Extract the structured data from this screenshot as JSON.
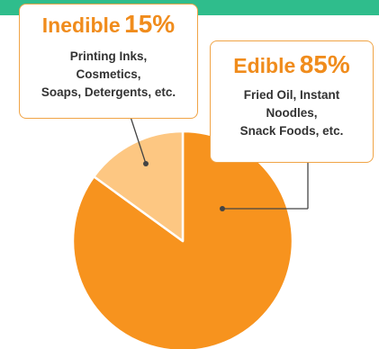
{
  "chart_data": {
    "type": "pie",
    "slices": [
      {
        "label": "Edible",
        "percent_text": "85%",
        "value": 85,
        "color": "#f7931e"
      },
      {
        "label": "Inedible",
        "percent_text": "15%",
        "value": 15,
        "color": "#fdc782"
      }
    ],
    "start_angle_deg": 0,
    "direction": "clockwise",
    "slice_border_color": "#ffffff",
    "callout_accent": "#f08c1c",
    "callout_border": "#f0a446",
    "leader_line_color": "#444444"
  },
  "callouts": {
    "inedible": {
      "word": "Inedible",
      "percent": "15%",
      "lines": [
        "Printing Inks,",
        "Cosmetics,",
        "Soaps, Detergents, etc."
      ]
    },
    "edible": {
      "word": "Edible",
      "percent": "85%",
      "lines": [
        "Fried Oil, Instant",
        "Noodles,",
        "Snack Foods, etc."
      ]
    }
  },
  "header_band_color": "#2fbd8c"
}
